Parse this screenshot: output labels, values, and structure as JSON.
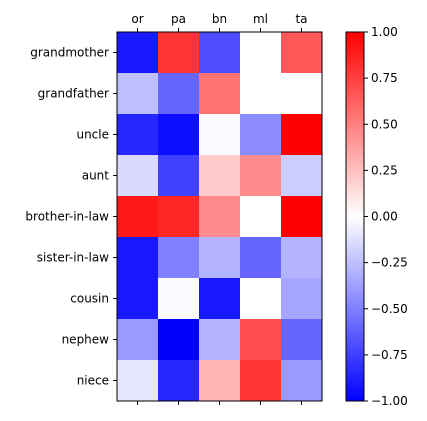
{
  "chart_data": {
    "type": "heatmap",
    "x_categories": [
      "or",
      "pa",
      "bn",
      "ml",
      "ta"
    ],
    "y_categories": [
      "grandmother",
      "grandfather",
      "uncle",
      "aunt",
      "brother-in-law",
      "sister-in-law",
      "cousin",
      "nephew",
      "niece"
    ],
    "values": [
      [
        -0.9,
        0.8,
        -0.7,
        0.0,
        0.65
      ],
      [
        -0.25,
        -0.6,
        0.55,
        0.0,
        0.0
      ],
      [
        -0.85,
        -0.95,
        -0.02,
        -0.45,
        1.0
      ],
      [
        -0.15,
        -0.75,
        0.2,
        0.45,
        -0.2
      ],
      [
        0.9,
        0.85,
        0.45,
        0.0,
        1.0
      ],
      [
        -0.9,
        -0.5,
        -0.3,
        -0.6,
        -0.3
      ],
      [
        -0.9,
        -0.02,
        -0.9,
        0.0,
        -0.35
      ],
      [
        -0.4,
        -1.0,
        -0.3,
        0.7,
        -0.6
      ],
      [
        -0.1,
        -0.85,
        0.3,
        0.8,
        -0.4
      ]
    ],
    "colormap": "bwr",
    "colorbar": {
      "range": [
        -1.0,
        1.0
      ],
      "ticks": [
        1.0,
        0.75,
        0.5,
        0.25,
        0.0,
        -0.25,
        -0.5,
        -0.75,
        -1.0
      ],
      "tick_labels": [
        "1.00",
        "0.75",
        "0.50",
        "0.25",
        "0.00",
        "−0.25",
        "−0.50",
        "−0.75",
        "−1.00"
      ]
    },
    "x_tick_position": "top",
    "grid": false
  }
}
